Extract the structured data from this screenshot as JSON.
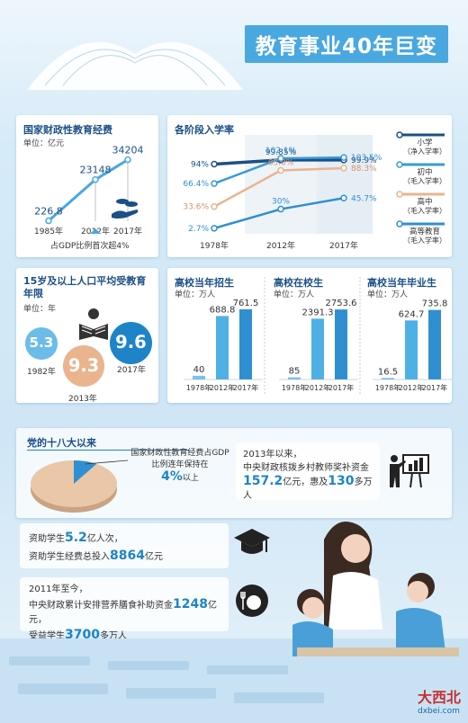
{
  "title": "教育事业40年巨变",
  "panel_funding": {
    "title": "国家财政性教育经费",
    "unit": "单位：亿元",
    "note": "占GDP比例首次超4%"
  },
  "panel_enrollment": {
    "title": "各阶段入学率"
  },
  "panel_years": {
    "title": "15岁及以上人口平均受教育年限",
    "unit": "单位：年"
  },
  "college_titles": {
    "a": "高校当年招生",
    "b": "高校在校生",
    "c": "高校当年毕业生",
    "unit": "单位：万人"
  },
  "since18": {
    "title": "党的十八大以来",
    "pie_text": "国家财政性教育经费占GDP比例连年保持在",
    "pie_value": "4%",
    "pie_suffix": "以上",
    "card1_l1": "2013年以来，",
    "card1_l2": "中央财政核拨乡村教师奖补资金",
    "card1_v1": "157.2",
    "card1_u1": "亿元，惠及",
    "card1_v2": "130",
    "card1_u2": "多万人",
    "card2_l1a": "资助学生",
    "card2_v1": "5.2",
    "card2_l1b": "亿人次，",
    "card2_l2a": "资助学生经费总投入",
    "card2_v2": "8864",
    "card2_l2b": "亿元",
    "card3_l1": "2011年至今，",
    "card3_l2a": "中央财政累计安排营养膳食补助资金",
    "card3_v1": "1248",
    "card3_l2b": "亿元，",
    "card3_l3a": "受益学生",
    "card3_v2": "3700",
    "card3_l3b": "多万人"
  },
  "logo": {
    "main": "大西北",
    "sub": "dxbei.com"
  },
  "colors": {
    "accent": "#1e84c7",
    "light": "#4aa8e0",
    "orange": "#e9b48e",
    "navy": "#1b4f87"
  },
  "icons": [
    "book-illustration",
    "money-hand-icon",
    "reading-person-icon",
    "teacher-board-icon",
    "grad-cap-icon",
    "meal-icon"
  ],
  "chart_data": [
    {
      "id": "funding",
      "type": "line",
      "categories": [
        "1985年",
        "2012年",
        "2017年"
      ],
      "values": [
        226.8,
        23148,
        34204
      ]
    },
    {
      "id": "enrollment",
      "type": "line",
      "categories": [
        "1978年",
        "2012年",
        "2017年"
      ],
      "series": [
        {
          "name": "小学（净入学率）",
          "values": [
            94,
            99.85,
            99.9
          ],
          "labels": [
            "94%",
            "99.85%",
            "99.9%"
          ]
        },
        {
          "name": "初中（毛入学率）",
          "values": [
            66.4,
            102.1,
            103.5
          ],
          "labels": [
            "66.4%",
            "102.1%",
            "103.5%"
          ]
        },
        {
          "name": "高中（毛入学率）",
          "values": [
            33.6,
            85.0,
            88.3
          ],
          "labels": [
            "33.6%",
            "85.0%",
            "88.3%"
          ]
        },
        {
          "name": "高等教育（毛入学率）",
          "values": [
            2.7,
            30,
            45.7
          ],
          "labels": [
            "2.7%",
            "30%",
            "45.7%"
          ]
        }
      ]
    },
    {
      "id": "avg-years",
      "type": "bubble",
      "categories": [
        "1982年",
        "2013年",
        "2017年"
      ],
      "values": [
        5.3,
        9.3,
        9.6
      ]
    },
    {
      "id": "admission",
      "type": "bar",
      "title": "高校当年招生",
      "categories": [
        "1978年",
        "2012年",
        "2017年"
      ],
      "values": [
        40,
        688.8,
        761.5
      ]
    },
    {
      "id": "in-school",
      "type": "bar",
      "title": "高校在校生",
      "categories": [
        "1978年",
        "2012年",
        "2017年"
      ],
      "values": [
        85,
        2391.3,
        2753.6
      ]
    },
    {
      "id": "graduates",
      "type": "bar",
      "title": "高校当年毕业生",
      "categories": [
        "1978年",
        "2012年",
        "2017年"
      ],
      "values": [
        16.5,
        624.7,
        735.8
      ]
    },
    {
      "id": "gdp-share",
      "type": "pie",
      "values": [
        4,
        96
      ],
      "labels": [
        "4%",
        ""
      ]
    }
  ]
}
